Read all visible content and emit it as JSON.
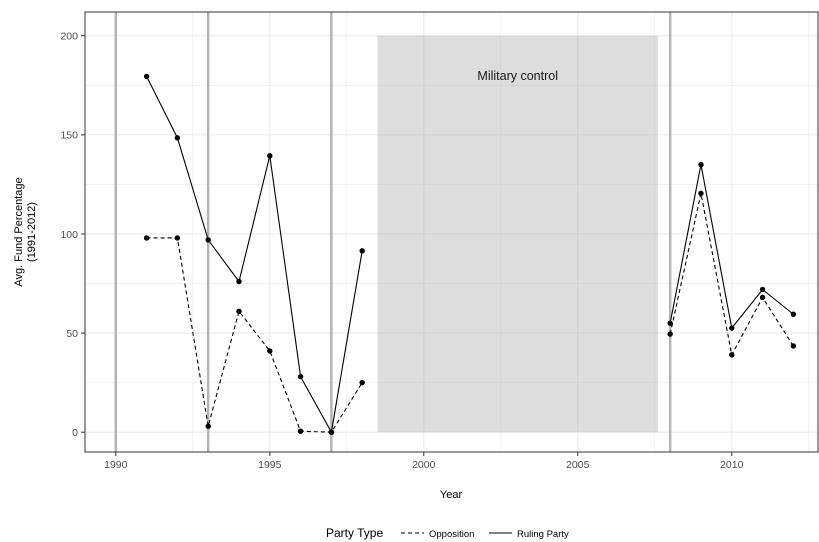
{
  "chart_data": {
    "type": "line",
    "title": "",
    "xlabel": "Year",
    "ylabel": [
      "Avg. Fund Percentage",
      "(1991-2012)"
    ],
    "xlim": [
      1989.0,
      2012.8
    ],
    "ylim": [
      -10,
      212
    ],
    "x_ticks": [
      "1990",
      "1995",
      "2000",
      "2005",
      "2010"
    ],
    "y_ticks": [
      "0",
      "50",
      "100",
      "150",
      "200"
    ],
    "grid": true,
    "legend": {
      "position": "bottom",
      "title": "Party Type",
      "entries": [
        "Opposition",
        "Ruling Party"
      ]
    },
    "vertical_lines": [
      1990,
      1993,
      1997,
      2008
    ],
    "shaded_region": {
      "label": "Military control",
      "x": [
        1998.5,
        2007.6
      ],
      "y": [
        0,
        200
      ]
    },
    "series": [
      {
        "name": "Opposition",
        "line_style": "dashed",
        "segments": [
          {
            "x": [
              1991,
              1992,
              1993,
              1994,
              1995,
              1996,
              1997,
              1998
            ],
            "y": [
              98,
              98,
              3,
              61,
              41,
              0.5,
              0,
              25
            ]
          },
          {
            "x": [
              2008,
              2009,
              2010,
              2011,
              2012
            ],
            "y": [
              49.5,
              120.5,
              39,
              68,
              43.5
            ]
          }
        ]
      },
      {
        "name": "Ruling Party",
        "line_style": "solid",
        "segments": [
          {
            "x": [
              1991,
              1992,
              1993,
              1994,
              1995,
              1996,
              1997,
              1998
            ],
            "y": [
              179.5,
              148.5,
              97,
              76,
              139.5,
              28,
              0,
              91.5
            ]
          },
          {
            "x": [
              2008,
              2009,
              2010,
              2011,
              2012
            ],
            "y": [
              55,
              135,
              52.5,
              72,
              59.5
            ]
          }
        ]
      }
    ]
  }
}
